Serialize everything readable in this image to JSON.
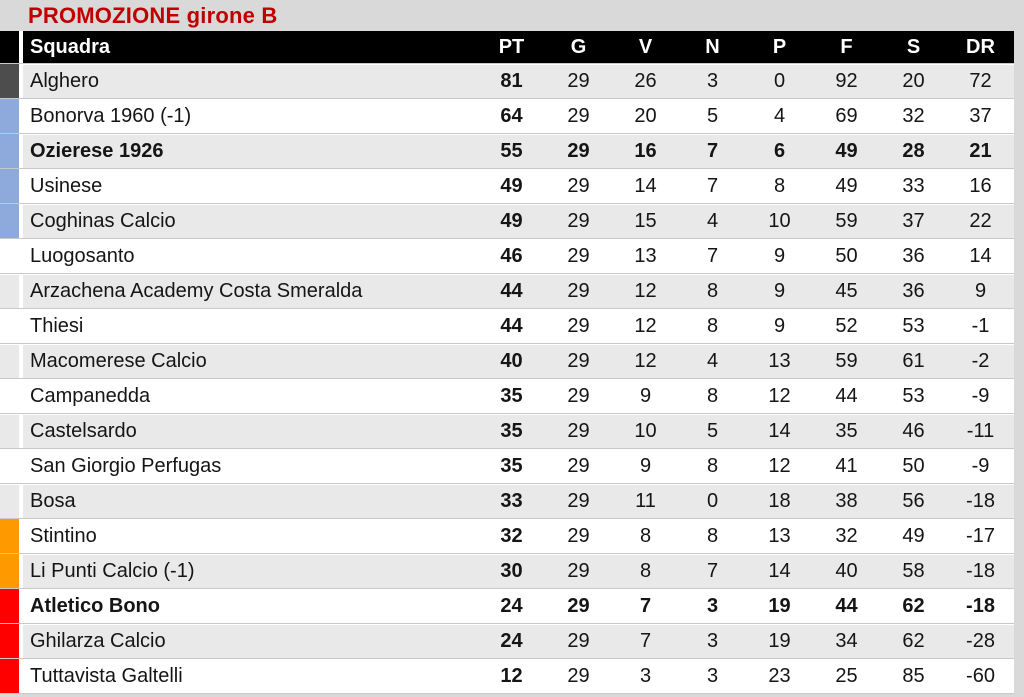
{
  "title": "PROMOZIONE girone B",
  "colors": {
    "title_text": "#c00000",
    "page_background": "#d9d9d9",
    "header_background": "#000000",
    "header_text": "#ffffff",
    "row_stripe": "#e9e9e9",
    "row_plain": "#ffffff",
    "indicator": {
      "gray": "#4d4d4d",
      "blue": "#8ea9db",
      "orange": "#ff9900",
      "red": "#ff0000"
    }
  },
  "table": {
    "columns": [
      "Squadra",
      "PT",
      "G",
      "V",
      "N",
      "P",
      "F",
      "S",
      "DR"
    ],
    "rows": [
      {
        "team": "Alghero",
        "pt": "81",
        "g": "29",
        "v": "26",
        "n": "3",
        "p": "0",
        "f": "92",
        "s": "20",
        "dr": "72",
        "indicator": "gray",
        "bold": false
      },
      {
        "team": "Bonorva 1960 (-1)",
        "pt": "64",
        "g": "29",
        "v": "20",
        "n": "5",
        "p": "4",
        "f": "69",
        "s": "32",
        "dr": "37",
        "indicator": "blue",
        "bold": false
      },
      {
        "team": "Ozierese 1926",
        "pt": "55",
        "g": "29",
        "v": "16",
        "n": "7",
        "p": "6",
        "f": "49",
        "s": "28",
        "dr": "21",
        "indicator": "blue",
        "bold": true
      },
      {
        "team": "Usinese",
        "pt": "49",
        "g": "29",
        "v": "14",
        "n": "7",
        "p": "8",
        "f": "49",
        "s": "33",
        "dr": "16",
        "indicator": "blue",
        "bold": false
      },
      {
        "team": "Coghinas Calcio",
        "pt": "49",
        "g": "29",
        "v": "15",
        "n": "4",
        "p": "10",
        "f": "59",
        "s": "37",
        "dr": "22",
        "indicator": "blue",
        "bold": false
      },
      {
        "team": "Luogosanto",
        "pt": "46",
        "g": "29",
        "v": "13",
        "n": "7",
        "p": "9",
        "f": "50",
        "s": "36",
        "dr": "14",
        "indicator": "none",
        "bold": false
      },
      {
        "team": "Arzachena Academy Costa Smeralda",
        "pt": "44",
        "g": "29",
        "v": "12",
        "n": "8",
        "p": "9",
        "f": "45",
        "s": "36",
        "dr": "9",
        "indicator": "none",
        "bold": false
      },
      {
        "team": "Thiesi",
        "pt": "44",
        "g": "29",
        "v": "12",
        "n": "8",
        "p": "9",
        "f": "52",
        "s": "53",
        "dr": "-1",
        "indicator": "none",
        "bold": false
      },
      {
        "team": "Macomerese Calcio",
        "pt": "40",
        "g": "29",
        "v": "12",
        "n": "4",
        "p": "13",
        "f": "59",
        "s": "61",
        "dr": "-2",
        "indicator": "none",
        "bold": false
      },
      {
        "team": "Campanedda",
        "pt": "35",
        "g": "29",
        "v": "9",
        "n": "8",
        "p": "12",
        "f": "44",
        "s": "53",
        "dr": "-9",
        "indicator": "none",
        "bold": false
      },
      {
        "team": "Castelsardo",
        "pt": "35",
        "g": "29",
        "v": "10",
        "n": "5",
        "p": "14",
        "f": "35",
        "s": "46",
        "dr": "-11",
        "indicator": "none",
        "bold": false
      },
      {
        "team": "San Giorgio Perfugas",
        "pt": "35",
        "g": "29",
        "v": "9",
        "n": "8",
        "p": "12",
        "f": "41",
        "s": "50",
        "dr": "-9",
        "indicator": "none",
        "bold": false
      },
      {
        "team": "Bosa",
        "pt": "33",
        "g": "29",
        "v": "11",
        "n": "0",
        "p": "18",
        "f": "38",
        "s": "56",
        "dr": "-18",
        "indicator": "none",
        "bold": false
      },
      {
        "team": "Stintino",
        "pt": "32",
        "g": "29",
        "v": "8",
        "n": "8",
        "p": "13",
        "f": "32",
        "s": "49",
        "dr": "-17",
        "indicator": "orange",
        "bold": false
      },
      {
        "team": "Li Punti Calcio (-1)",
        "pt": "30",
        "g": "29",
        "v": "8",
        "n": "7",
        "p": "14",
        "f": "40",
        "s": "58",
        "dr": "-18",
        "indicator": "orange",
        "bold": false
      },
      {
        "team": "Atletico Bono",
        "pt": "24",
        "g": "29",
        "v": "7",
        "n": "3",
        "p": "19",
        "f": "44",
        "s": "62",
        "dr": "-18",
        "indicator": "red",
        "bold": true
      },
      {
        "team": "Ghilarza Calcio",
        "pt": "24",
        "g": "29",
        "v": "7",
        "n": "3",
        "p": "19",
        "f": "34",
        "s": "62",
        "dr": "-28",
        "indicator": "red",
        "bold": false
      },
      {
        "team": "Tuttavista Galtelli",
        "pt": "12",
        "g": "29",
        "v": "3",
        "n": "3",
        "p": "23",
        "f": "25",
        "s": "85",
        "dr": "-60",
        "indicator": "red",
        "bold": false
      }
    ]
  }
}
